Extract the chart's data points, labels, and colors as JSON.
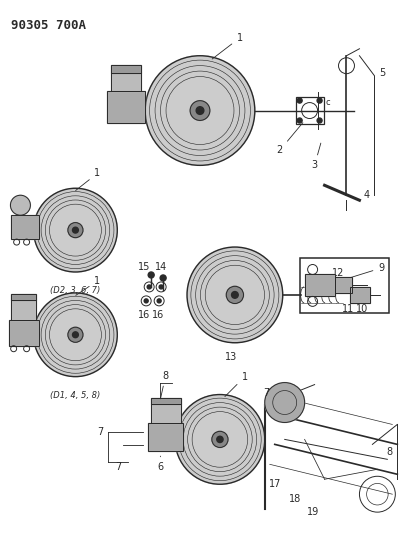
{
  "title": "90305 700A",
  "background_color": "#f5f5f5",
  "line_color": "#2a2a2a",
  "gray_fill": "#b0b0b0",
  "dark_gray": "#555555",
  "light_gray": "#cccccc",
  "figsize": [
    4.0,
    5.33
  ],
  "dpi": 100,
  "sub_label_top": "(D2, 3, 6, 7)",
  "sub_label_bot": "(D1, 4, 5, 8)"
}
